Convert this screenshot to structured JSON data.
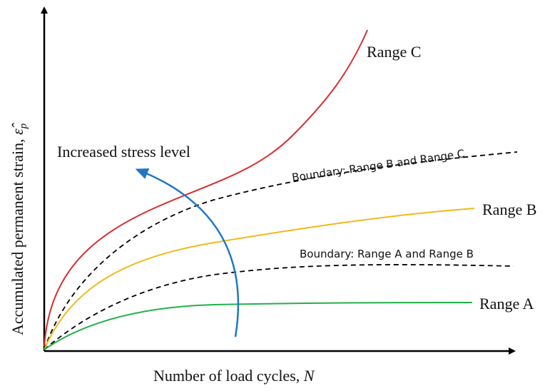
{
  "title_annotation": "Increased stress level",
  "x_axis": {
    "label": "Number of load cycles,",
    "symbol": "N"
  },
  "y_axis": {
    "label": "Accumulated permanent strain,",
    "symbol": "ε̂",
    "subscript": "p"
  },
  "curves": [
    {
      "label": "Range C"
    },
    {
      "label": "Boundary: Range B and Range C"
    },
    {
      "label": "Range B"
    },
    {
      "label": "Boundary: Range A and Range B"
    },
    {
      "label": "Range A"
    }
  ]
}
